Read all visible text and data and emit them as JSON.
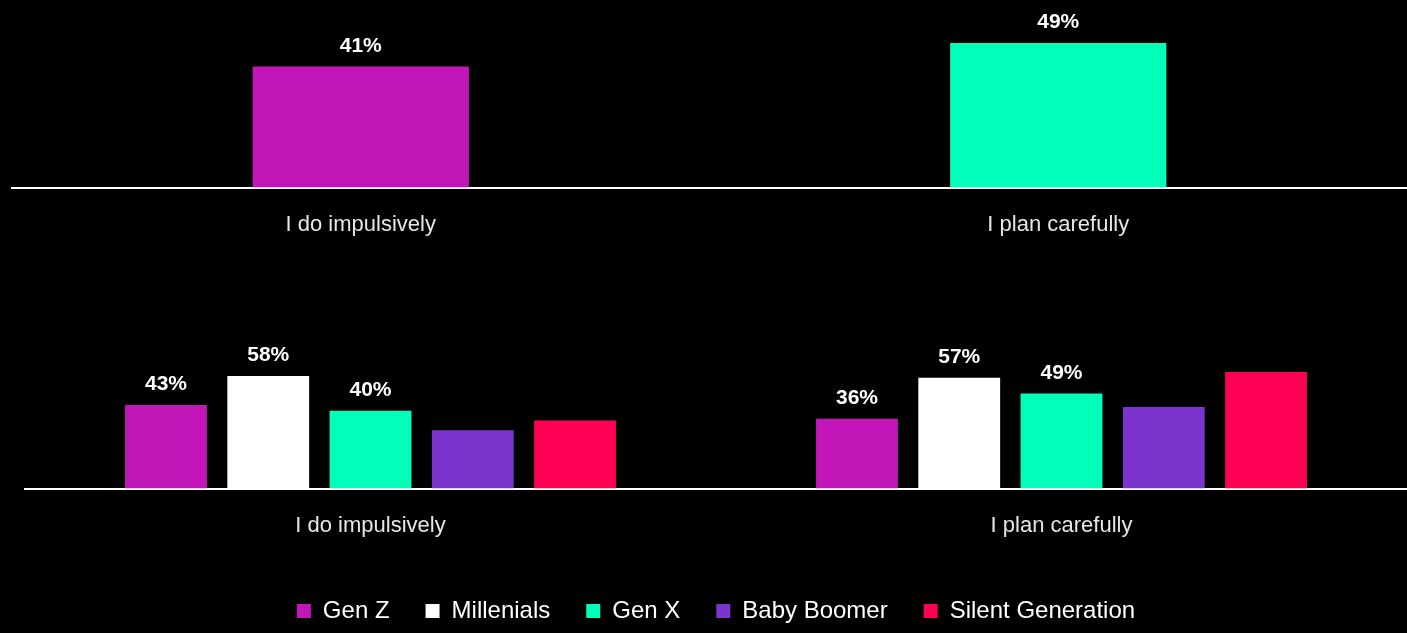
{
  "chart_data": [
    {
      "type": "bar",
      "categories": [
        "I do impulsively",
        "I plan carefully"
      ],
      "values": [
        41,
        49
      ],
      "colors": [
        "#c316b9",
        "#00ffb9"
      ],
      "value_labels": [
        "41%",
        "49%"
      ]
    },
    {
      "type": "bar",
      "categories": [
        "I do impulsively",
        "I plan carefully"
      ],
      "legend": "bottom",
      "series": [
        {
          "name": "Gen Z",
          "color": "#c316b9",
          "values": [
            43,
            36
          ],
          "value_labels": [
            "43%",
            "36%"
          ]
        },
        {
          "name": "Millenials",
          "color": "#ffffff",
          "values": [
            58,
            57
          ],
          "value_labels": [
            "58%",
            "57%"
          ]
        },
        {
          "name": "Gen X",
          "color": "#00ffb9",
          "values": [
            40,
            49
          ],
          "value_labels": [
            "40%",
            "49%"
          ]
        },
        {
          "name": "Baby Boomer",
          "color": "#7b35cc",
          "values": [
            30,
            42
          ],
          "value_labels": [
            null,
            null
          ]
        },
        {
          "name": "Silent Generation",
          "color": "#ff0055",
          "values": [
            35,
            60
          ],
          "value_labels": [
            null,
            null
          ]
        }
      ]
    }
  ]
}
